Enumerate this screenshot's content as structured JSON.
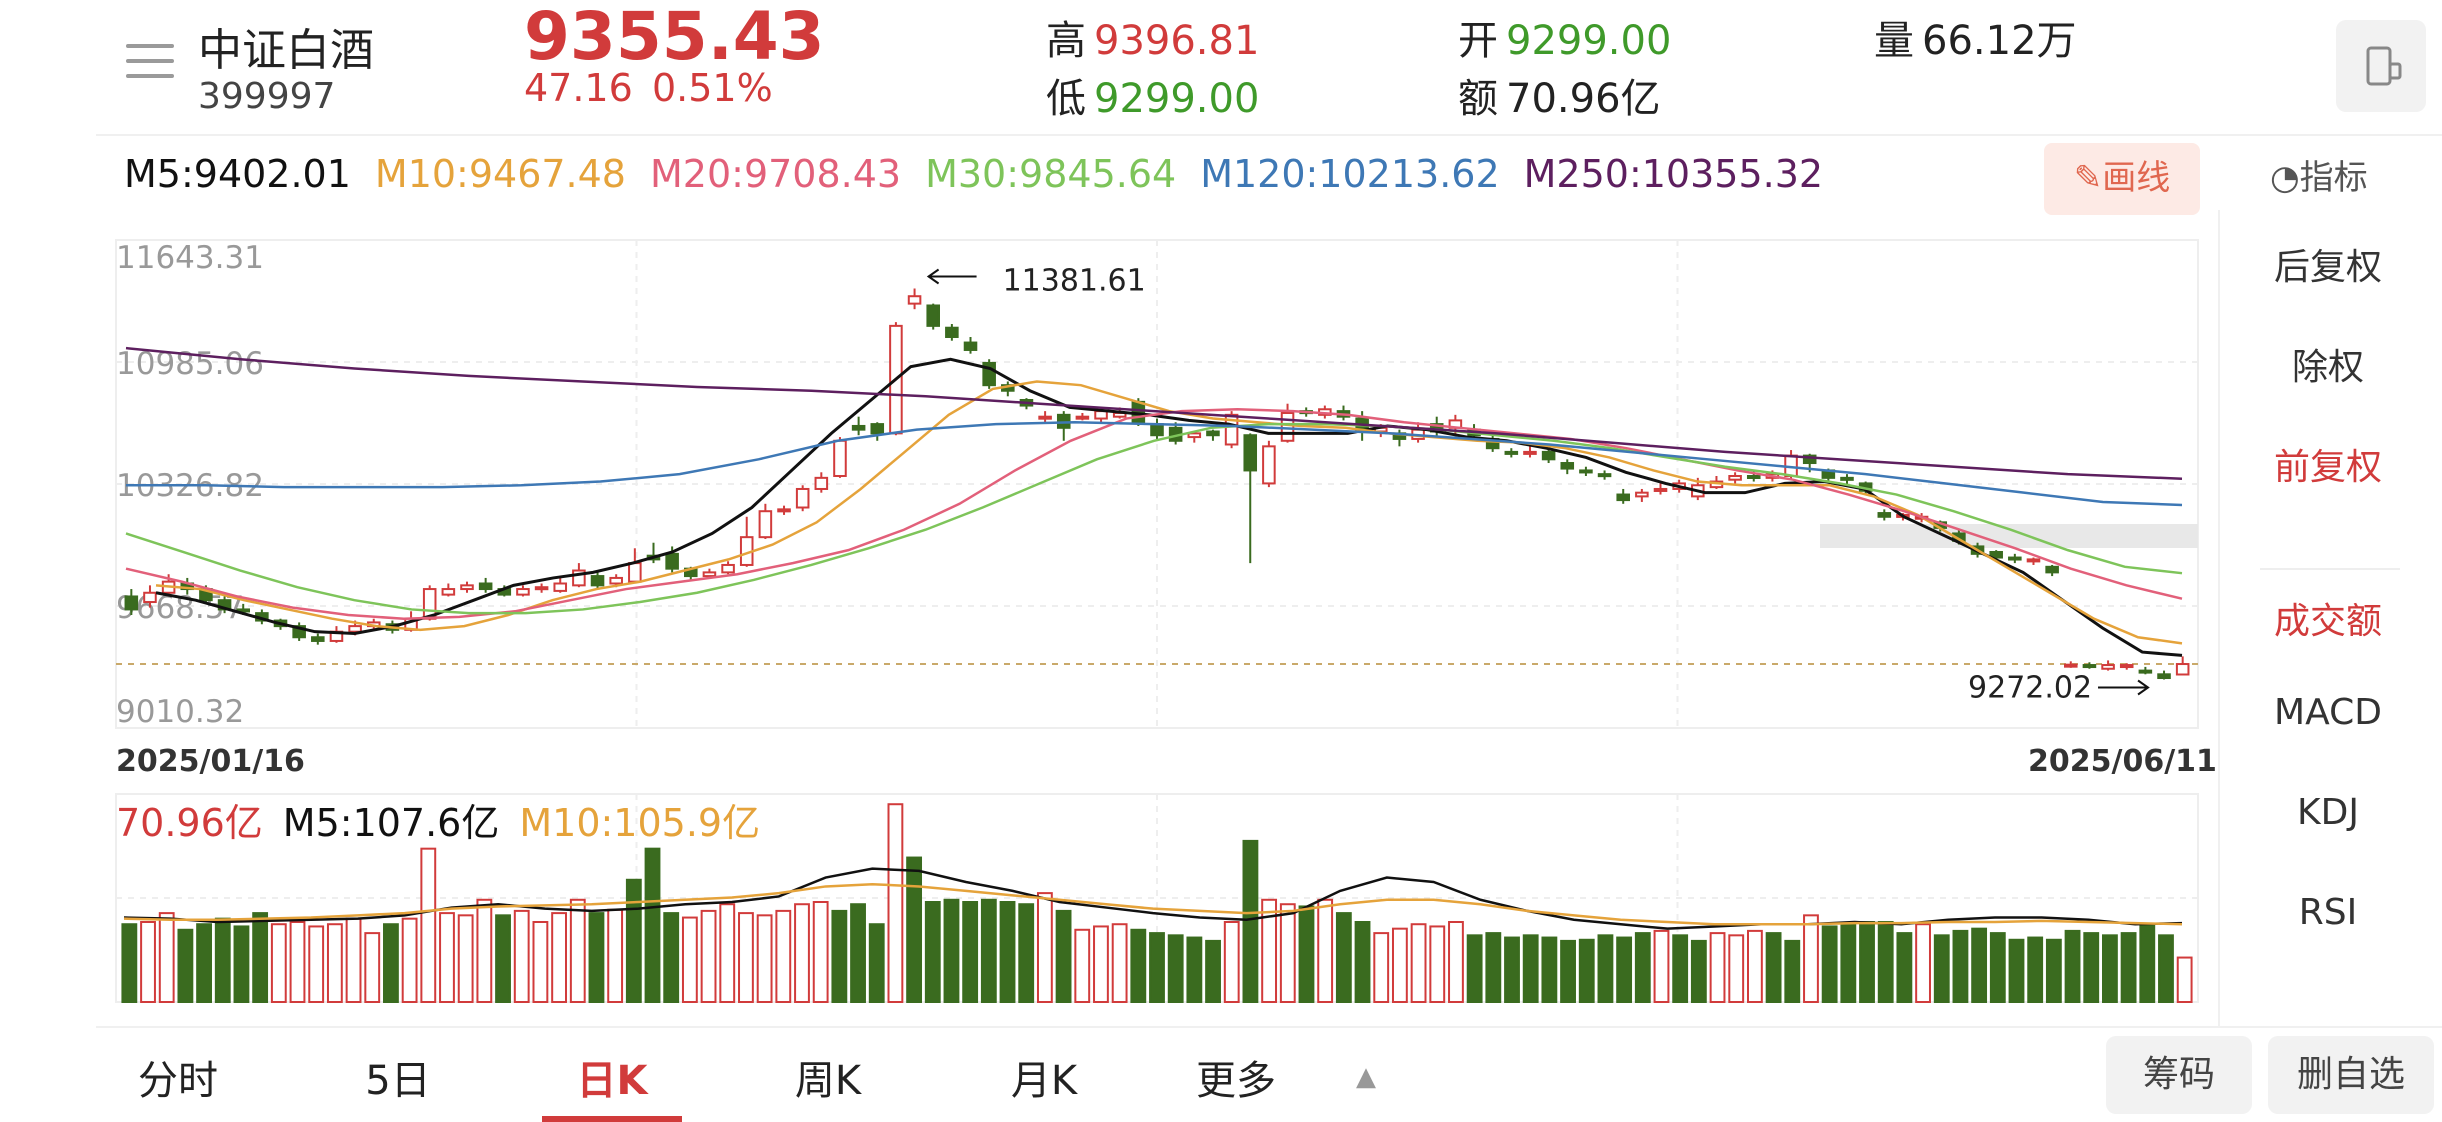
{
  "header": {
    "name": "中证白酒",
    "code": "399997",
    "price": "9355.43",
    "change": "47.16",
    "change_pct": "0.51%",
    "high_label": "高",
    "high": "9396.81",
    "low_label": "低",
    "low": "9299.00",
    "open_label": "开",
    "open": "9299.00",
    "amount_label": "额",
    "amount": "70.96亿",
    "volume_label": "量",
    "volume": "66.12万"
  },
  "ma_legend": [
    {
      "text": "M5:9402.01",
      "color": "#111111"
    },
    {
      "text": "M10:9467.48",
      "color": "#e5a33b"
    },
    {
      "text": "M20:9708.43",
      "color": "#e2607a"
    },
    {
      "text": "M30:9845.64",
      "color": "#7ec45a"
    },
    {
      "text": "M120:10213.62",
      "color": "#3e78b5"
    },
    {
      "text": "M250:10355.32",
      "color": "#5d1f5f"
    }
  ],
  "draw_button": "画线",
  "indicator_label": "指标",
  "side_menu": [
    "后复权",
    "除权",
    "前复权",
    "成交额",
    "MACD",
    "KDJ",
    "RSI"
  ],
  "price_axis": [
    "11643.31",
    "10985.06",
    "10326.82",
    "9668.57",
    "9010.32"
  ],
  "dates": {
    "start": "2025/01/16",
    "end": "2025/06/11"
  },
  "max_marker": "11381.61",
  "min_marker": "9272.02",
  "volume_legend": [
    {
      "text": "70.96亿",
      "color": "#d13b3b"
    },
    {
      "text": "M5:107.6亿",
      "color": "#111111"
    },
    {
      "text": "M10:105.9亿",
      "color": "#e5a33b"
    }
  ],
  "bottom_tabs": [
    "分时",
    "5日",
    "日K",
    "周K",
    "月K",
    "更多"
  ],
  "bottom_buttons": [
    "筹码",
    "删自选"
  ],
  "colors": {
    "up": "#d13b3b",
    "down": "#3a6b1f",
    "accent": "#d13b3b"
  },
  "chart_data": {
    "type": "candlestick",
    "ylim": [
      9010.32,
      11643.31
    ],
    "candles": [
      [
        9720,
        9650,
        9760,
        9620
      ],
      [
        9690,
        9740,
        9780,
        9660
      ],
      [
        9740,
        9800,
        9840,
        9720
      ],
      [
        9790,
        9760,
        9820,
        9730
      ],
      [
        9760,
        9700,
        9780,
        9680
      ],
      [
        9700,
        9650,
        9720,
        9630
      ],
      [
        9650,
        9640,
        9680,
        9620
      ],
      [
        9630,
        9590,
        9650,
        9570
      ],
      [
        9590,
        9560,
        9600,
        9540
      ],
      [
        9560,
        9500,
        9580,
        9480
      ],
      [
        9500,
        9480,
        9520,
        9460
      ],
      [
        9480,
        9530,
        9560,
        9470
      ],
      [
        9530,
        9560,
        9590,
        9510
      ],
      [
        9560,
        9580,
        9600,
        9540
      ],
      [
        9570,
        9540,
        9590,
        9520
      ],
      [
        9540,
        9600,
        9640,
        9530
      ],
      [
        9600,
        9760,
        9780,
        9590
      ],
      [
        9730,
        9760,
        9790,
        9720
      ],
      [
        9760,
        9780,
        9800,
        9740
      ],
      [
        9790,
        9760,
        9820,
        9740
      ],
      [
        9760,
        9730,
        9780,
        9720
      ],
      [
        9730,
        9760,
        9780,
        9720
      ],
      [
        9760,
        9770,
        9790,
        9740
      ],
      [
        9750,
        9790,
        9820,
        9740
      ],
      [
        9780,
        9860,
        9900,
        9770
      ],
      [
        9830,
        9780,
        9850,
        9760
      ],
      [
        9790,
        9820,
        9840,
        9770
      ],
      [
        9800,
        9900,
        9980,
        9790
      ],
      [
        9940,
        9920,
        10010,
        9900
      ],
      [
        9950,
        9870,
        9990,
        9850
      ],
      [
        9870,
        9830,
        9880,
        9810
      ],
      [
        9830,
        9850,
        9870,
        9820
      ],
      [
        9850,
        9890,
        9910,
        9840
      ],
      [
        9890,
        10040,
        10150,
        9880
      ],
      [
        10040,
        10180,
        10220,
        10030
      ],
      [
        10180,
        10190,
        10210,
        10160
      ],
      [
        10200,
        10300,
        10320,
        10180
      ],
      [
        10300,
        10360,
        10390,
        10280
      ],
      [
        10370,
        10560,
        10580,
        10360
      ],
      [
        10640,
        10620,
        10690,
        10590
      ],
      [
        10650,
        10600,
        10660,
        10560
      ],
      [
        10600,
        11180,
        11200,
        10590
      ],
      [
        11300,
        11340,
        11381.61,
        11270
      ],
      [
        11290,
        11180,
        11300,
        11160
      ],
      [
        11170,
        11120,
        11190,
        11100
      ],
      [
        11090,
        11050,
        11120,
        11030
      ],
      [
        10980,
        10860,
        11000,
        10840
      ],
      [
        10860,
        10830,
        10880,
        10800
      ],
      [
        10780,
        10750,
        10790,
        10730
      ],
      [
        10680,
        10690,
        10720,
        10660
      ],
      [
        10700,
        10630,
        10720,
        10560
      ],
      [
        10680,
        10690,
        10710,
        10670
      ],
      [
        10680,
        10720,
        10740,
        10660
      ],
      [
        10690,
        10710,
        10740,
        10680
      ],
      [
        10770,
        10660,
        10790,
        10640
      ],
      [
        10650,
        10590,
        10680,
        10570
      ],
      [
        10630,
        10560,
        10660,
        10540
      ],
      [
        10580,
        10600,
        10610,
        10550
      ],
      [
        10610,
        10590,
        10620,
        10560
      ],
      [
        10540,
        10700,
        10720,
        10520
      ],
      [
        10590,
        10400,
        10600,
        9900
      ],
      [
        10330,
        10530,
        10560,
        10310
      ],
      [
        10560,
        10710,
        10760,
        10550
      ],
      [
        10720,
        10710,
        10740,
        10690
      ],
      [
        10700,
        10730,
        10750,
        10680
      ],
      [
        10720,
        10690,
        10750,
        10670
      ],
      [
        10680,
        10620,
        10720,
        10560
      ],
      [
        10610,
        10630,
        10650,
        10580
      ],
      [
        10600,
        10570,
        10620,
        10530
      ],
      [
        10570,
        10620,
        10660,
        10550
      ],
      [
        10650,
        10610,
        10690,
        10580
      ],
      [
        10630,
        10670,
        10700,
        10590
      ],
      [
        10620,
        10590,
        10650,
        10570
      ],
      [
        10570,
        10520,
        10590,
        10500
      ],
      [
        10500,
        10490,
        10520,
        10470
      ],
      [
        10490,
        10500,
        10530,
        10470
      ],
      [
        10500,
        10460,
        10510,
        10440
      ],
      [
        10440,
        10410,
        10460,
        10380
      ],
      [
        10400,
        10390,
        10420,
        10370
      ],
      [
        10380,
        10370,
        10400,
        10350
      ],
      [
        10270,
        10240,
        10300,
        10220
      ],
      [
        10260,
        10280,
        10300,
        10230
      ],
      [
        10290,
        10300,
        10330,
        10270
      ],
      [
        10300,
        10330,
        10350,
        10280
      ],
      [
        10260,
        10320,
        10360,
        10240
      ],
      [
        10310,
        10340,
        10370,
        10300
      ],
      [
        10350,
        10370,
        10390,
        10330
      ],
      [
        10370,
        10360,
        10400,
        10340
      ],
      [
        10360,
        10380,
        10400,
        10340
      ],
      [
        10370,
        10480,
        10510,
        10350
      ],
      [
        10480,
        10440,
        10490,
        10390
      ],
      [
        10400,
        10360,
        10410,
        10330
      ],
      [
        10360,
        10350,
        10380,
        10320
      ],
      [
        10330,
        10290,
        10340,
        10270
      ],
      [
        10170,
        10150,
        10190,
        10130
      ],
      [
        10150,
        10160,
        10170,
        10130
      ],
      [
        10140,
        10150,
        10170,
        10120
      ],
      [
        10120,
        10090,
        10130,
        10070
      ],
      [
        10060,
        10020,
        10080,
        10000
      ],
      [
        9990,
        9950,
        10010,
        9930
      ],
      [
        9960,
        9930,
        9970,
        9910
      ],
      [
        9930,
        9920,
        9950,
        9900
      ],
      [
        9910,
        9920,
        9930,
        9890
      ],
      [
        9880,
        9850,
        9890,
        9830
      ],
      [
        9350,
        9352,
        9370,
        9335
      ],
      [
        9350,
        9345,
        9365,
        9330
      ],
      [
        9330,
        9350,
        9375,
        9320
      ],
      [
        9345,
        9350,
        9360,
        9325
      ],
      [
        9320,
        9310,
        9340,
        9300
      ],
      [
        9300,
        9280,
        9320,
        9272.02
      ],
      [
        9299,
        9355.43,
        9396.81,
        9299
      ]
    ],
    "volumes": [
      [
        70,
        0
      ],
      [
        72,
        1
      ],
      [
        80,
        1
      ],
      [
        65,
        0
      ],
      [
        70,
        0
      ],
      [
        75,
        0
      ],
      [
        68,
        0
      ],
      [
        80,
        0
      ],
      [
        70,
        1
      ],
      [
        72,
        1
      ],
      [
        68,
        1
      ],
      [
        70,
        1
      ],
      [
        75,
        1
      ],
      [
        62,
        1
      ],
      [
        70,
        0
      ],
      [
        75,
        1
      ],
      [
        138,
        1
      ],
      [
        80,
        1
      ],
      [
        78,
        1
      ],
      [
        92,
        1
      ],
      [
        78,
        0
      ],
      [
        82,
        1
      ],
      [
        72,
        1
      ],
      [
        80,
        1
      ],
      [
        92,
        1
      ],
      [
        80,
        0
      ],
      [
        83,
        1
      ],
      [
        110,
        0
      ],
      [
        138,
        0
      ],
      [
        80,
        0
      ],
      [
        76,
        1
      ],
      [
        82,
        1
      ],
      [
        88,
        1
      ],
      [
        80,
        1
      ],
      [
        78,
        1
      ],
      [
        82,
        1
      ],
      [
        88,
        1
      ],
      [
        90,
        1
      ],
      [
        82,
        0
      ],
      [
        88,
        0
      ],
      [
        70,
        0
      ],
      [
        178,
        1
      ],
      [
        130,
        0
      ],
      [
        90,
        0
      ],
      [
        92,
        0
      ],
      [
        90,
        0
      ],
      [
        92,
        0
      ],
      [
        90,
        0
      ],
      [
        88,
        0
      ],
      [
        98,
        1
      ],
      [
        82,
        0
      ],
      [
        65,
        1
      ],
      [
        68,
        1
      ],
      [
        70,
        1
      ],
      [
        65,
        0
      ],
      [
        62,
        0
      ],
      [
        60,
        0
      ],
      [
        58,
        0
      ],
      [
        55,
        0
      ],
      [
        72,
        1
      ],
      [
        145,
        0
      ],
      [
        92,
        1
      ],
      [
        88,
        1
      ],
      [
        86,
        0
      ],
      [
        92,
        1
      ],
      [
        80,
        0
      ],
      [
        72,
        0
      ],
      [
        62,
        1
      ],
      [
        66,
        1
      ],
      [
        70,
        1
      ],
      [
        68,
        1
      ],
      [
        72,
        1
      ],
      [
        60,
        0
      ],
      [
        62,
        0
      ],
      [
        58,
        0
      ],
      [
        60,
        0
      ],
      [
        58,
        0
      ],
      [
        55,
        0
      ],
      [
        56,
        0
      ],
      [
        60,
        0
      ],
      [
        58,
        0
      ],
      [
        62,
        0
      ],
      [
        64,
        1
      ],
      [
        60,
        0
      ],
      [
        55,
        0
      ],
      [
        62,
        1
      ],
      [
        60,
        1
      ],
      [
        64,
        1
      ],
      [
        62,
        0
      ],
      [
        55,
        0
      ],
      [
        78,
        1
      ],
      [
        68,
        0
      ],
      [
        70,
        0
      ],
      [
        72,
        0
      ],
      [
        72,
        0
      ],
      [
        62,
        0
      ],
      [
        70,
        1
      ],
      [
        60,
        0
      ],
      [
        64,
        0
      ],
      [
        66,
        0
      ],
      [
        62,
        0
      ],
      [
        56,
        0
      ],
      [
        58,
        0
      ],
      [
        56,
        0
      ],
      [
        64,
        0
      ],
      [
        62,
        0
      ],
      [
        60,
        0
      ],
      [
        62,
        0
      ],
      [
        70,
        0
      ],
      [
        60,
        0
      ],
      [
        40,
        1
      ]
    ],
    "ma_lines": {
      "M5": [
        9740,
        9700,
        9640,
        9580,
        9530,
        9520,
        9560,
        9620,
        9700,
        9780,
        9820,
        9850,
        9900,
        9960,
        10060,
        10200,
        10400,
        10600,
        10780,
        10960,
        11000,
        10950,
        10830,
        10740,
        10720,
        10700,
        10670,
        10650,
        10600,
        10600,
        10600,
        10640,
        10620,
        10580,
        10560,
        10520,
        10470,
        10390,
        10330,
        10280,
        10280,
        10330,
        10340,
        10300,
        10150,
        10050,
        9950,
        9850,
        9700,
        9550,
        9420,
        9402
      ],
      "M10": [
        9780,
        9760,
        9700,
        9650,
        9600,
        9560,
        9540,
        9560,
        9620,
        9700,
        9760,
        9800,
        9860,
        9920,
        10000,
        10120,
        10300,
        10500,
        10700,
        10840,
        10880,
        10860,
        10790,
        10720,
        10680,
        10660,
        10640,
        10630,
        10600,
        10580,
        10560,
        10550,
        10520,
        10470,
        10400,
        10340,
        10320,
        10320,
        10320,
        10260,
        10160,
        10020,
        9880,
        9740,
        9600,
        9500,
        9467
      ],
      "M20": [
        9870,
        9800,
        9720,
        9660,
        9620,
        9600,
        9610,
        9640,
        9700,
        9760,
        9800,
        9840,
        9900,
        9970,
        10080,
        10220,
        10400,
        10560,
        10680,
        10720,
        10730,
        10720,
        10700,
        10660,
        10630,
        10600,
        10570,
        10520,
        10460,
        10400,
        10350,
        10270,
        10180,
        10080,
        9980,
        9870,
        9780,
        9708
      ],
      "M30": [
        10060,
        9960,
        9860,
        9770,
        9700,
        9650,
        9630,
        9630,
        9650,
        9690,
        9740,
        9810,
        9890,
        9980,
        10080,
        10200,
        10330,
        10460,
        10560,
        10630,
        10650,
        10650,
        10640,
        10620,
        10590,
        10560,
        10520,
        10470,
        10420,
        10380,
        10330,
        10270,
        10180,
        10080,
        9970,
        9880,
        9845.64
      ],
      "M120": [
        10320,
        10320,
        10310,
        10310,
        10310,
        10320,
        10340,
        10380,
        10460,
        10560,
        10620,
        10650,
        10660,
        10650,
        10640,
        10620,
        10600,
        10570,
        10540,
        10500,
        10460,
        10420,
        10380,
        10330,
        10280,
        10230,
        10213.62
      ],
      "M250": [
        11060,
        11000,
        10950,
        10910,
        10880,
        10850,
        10830,
        10800,
        10760,
        10720,
        10680,
        10640,
        10600,
        10550,
        10500,
        10460,
        10420,
        10380,
        10355.32
      ]
    },
    "vol_ma": {
      "M5": [
        76,
        75,
        72,
        73,
        74,
        75,
        78,
        85,
        88,
        84,
        82,
        84,
        88,
        90,
        95,
        112,
        120,
        118,
        108,
        100,
        90,
        85,
        80,
        76,
        74,
        80,
        100,
        112,
        108,
        92,
        82,
        74,
        70,
        66,
        68,
        70,
        70,
        72,
        70,
        74,
        76,
        76,
        74,
        70,
        71
      ],
      "M10": [
        75,
        74,
        74,
        75,
        76,
        78,
        80,
        84,
        86,
        87,
        88,
        90,
        92,
        94,
        98,
        104,
        106,
        104,
        100,
        96,
        92,
        88,
        84,
        82,
        80,
        82,
        88,
        92,
        92,
        88,
        82,
        78,
        74,
        72,
        70,
        70,
        70,
        71,
        71,
        72,
        72,
        73,
        72,
        71,
        70
      ]
    },
    "xlabel": "",
    "ylabel": ""
  }
}
